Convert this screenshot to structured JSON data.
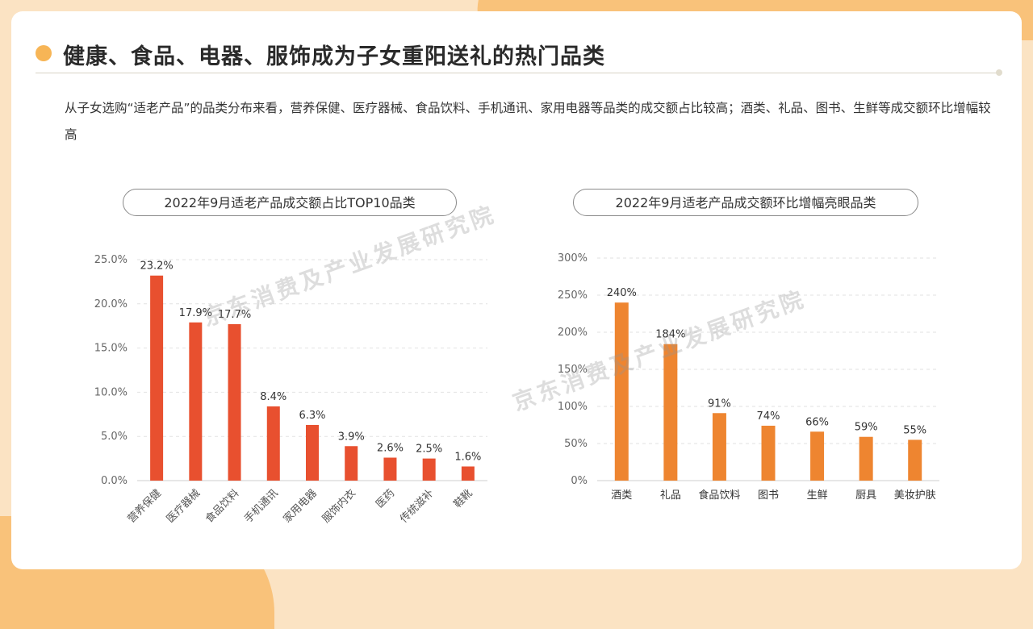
{
  "title": "健康、食品、电器、服饰成为子女重阳送礼的热门品类",
  "description": "从子女选购“适老产品”的品类分布来看，营养保健、医疗器械、食品饮料、手机通讯、家用电器等品类的成交额占比较高；酒类、礼品、图书、生鲜等成交额环比增幅较高",
  "watermark": "京东消费及产业发展研究院",
  "colors": {
    "left_bar": "#e8502f",
    "right_bar": "#ee8530",
    "accent": "#f7b556"
  },
  "chart_data": [
    {
      "type": "bar",
      "title": "2022年9月适老产品成交额占比TOP10品类",
      "categories": [
        "营养保健",
        "医疗器械",
        "食品饮料",
        "手机通讯",
        "家用电器",
        "服饰内衣",
        "医药",
        "传统滋补",
        "鞋靴"
      ],
      "values": [
        23.2,
        17.9,
        17.7,
        8.4,
        6.3,
        3.9,
        2.6,
        2.5,
        1.6
      ],
      "value_labels": [
        "23.2%",
        "17.9%",
        "17.7%",
        "8.4%",
        "6.3%",
        "3.9%",
        "2.6%",
        "2.5%",
        "1.6%"
      ],
      "y_ticks": [
        "0.0%",
        "5.0%",
        "10.0%",
        "15.0%",
        "20.0%",
        "25.0%"
      ],
      "ylim": [
        0,
        25
      ],
      "grid": true
    },
    {
      "type": "bar",
      "title": "2022年9月适老产品成交额环比增幅亮眼品类",
      "categories": [
        "酒类",
        "礼品",
        "食品饮料",
        "图书",
        "生鲜",
        "厨具",
        "美妆护肤"
      ],
      "values": [
        240,
        184,
        91,
        74,
        66,
        59,
        55
      ],
      "value_labels": [
        "240%",
        "184%",
        "91%",
        "74%",
        "66%",
        "59%",
        "55%"
      ],
      "y_ticks": [
        "0%",
        "50%",
        "100%",
        "150%",
        "200%",
        "250%",
        "300%"
      ],
      "ylim": [
        0,
        300
      ],
      "grid": true
    }
  ]
}
